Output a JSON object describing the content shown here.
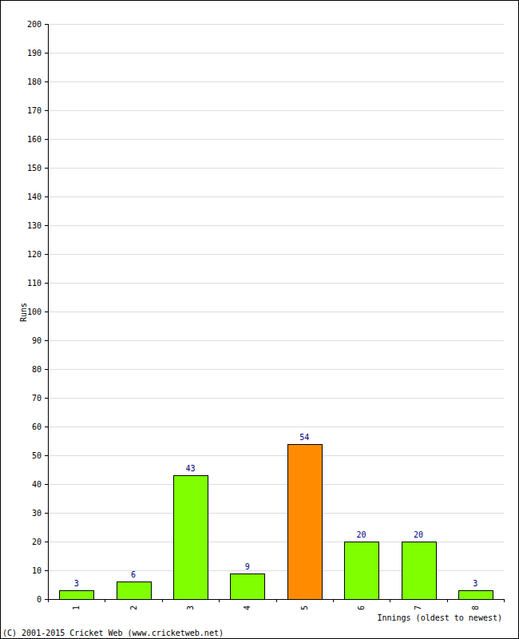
{
  "chart_data": {
    "type": "bar",
    "x_label": "Innings (oldest to newest)",
    "y_label": "Runs",
    "annotations": [
      "(C) 2001-2015 Cricket Web (www.cricketweb.net)"
    ],
    "categories": [
      "1",
      "2",
      "3",
      "4",
      "5",
      "6",
      "7",
      "8"
    ],
    "values": [
      3,
      6,
      43,
      9,
      54,
      20,
      20,
      3
    ],
    "colors": [
      "#80ff00",
      "#80ff00",
      "#80ff00",
      "#80ff00",
      "#ff8c00",
      "#80ff00",
      "#80ff00",
      "#80ff00"
    ],
    "ylim": [
      0,
      200
    ],
    "yticks": [
      0,
      10,
      20,
      30,
      40,
      50,
      60,
      70,
      80,
      90,
      100,
      110,
      120,
      130,
      140,
      150,
      160,
      170,
      180,
      190,
      200
    ],
    "grid": true,
    "data_labels": true
  }
}
